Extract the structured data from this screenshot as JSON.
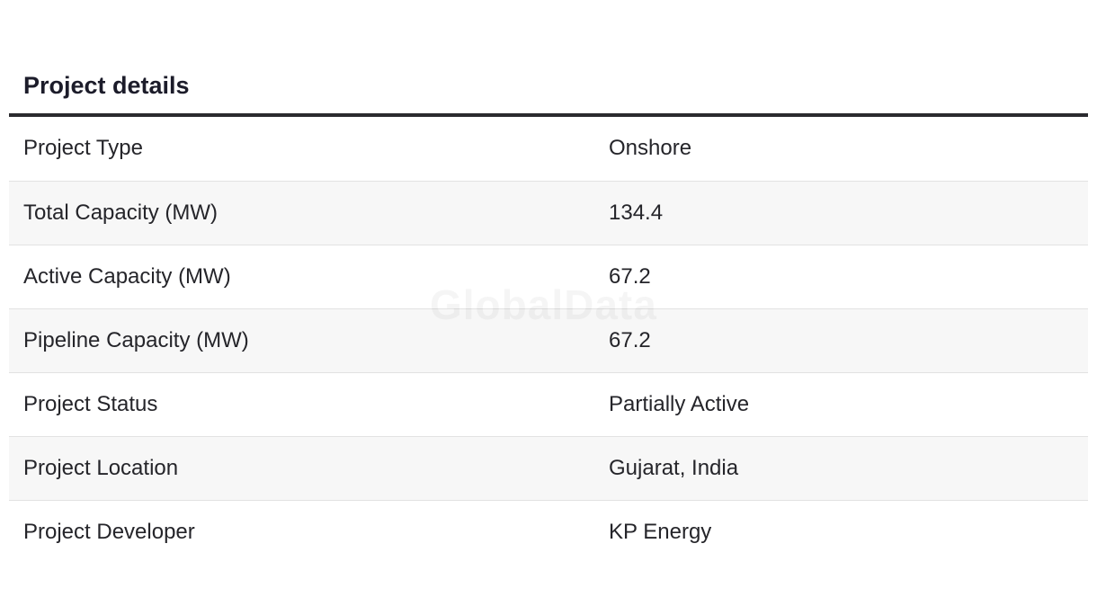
{
  "section": {
    "title": "Project details"
  },
  "rows": [
    {
      "label": "Project Type",
      "value": "Onshore"
    },
    {
      "label": "Total Capacity (MW)",
      "value": "134.4"
    },
    {
      "label": "Active Capacity (MW)",
      "value": "67.2"
    },
    {
      "label": "Pipeline Capacity (MW)",
      "value": "67.2"
    },
    {
      "label": "Project Status",
      "value": "Partially Active"
    },
    {
      "label": "Project Location",
      "value": "Gujarat, India"
    },
    {
      "label": "Project Developer",
      "value": "KP Energy"
    }
  ],
  "watermark": "GlobalData"
}
